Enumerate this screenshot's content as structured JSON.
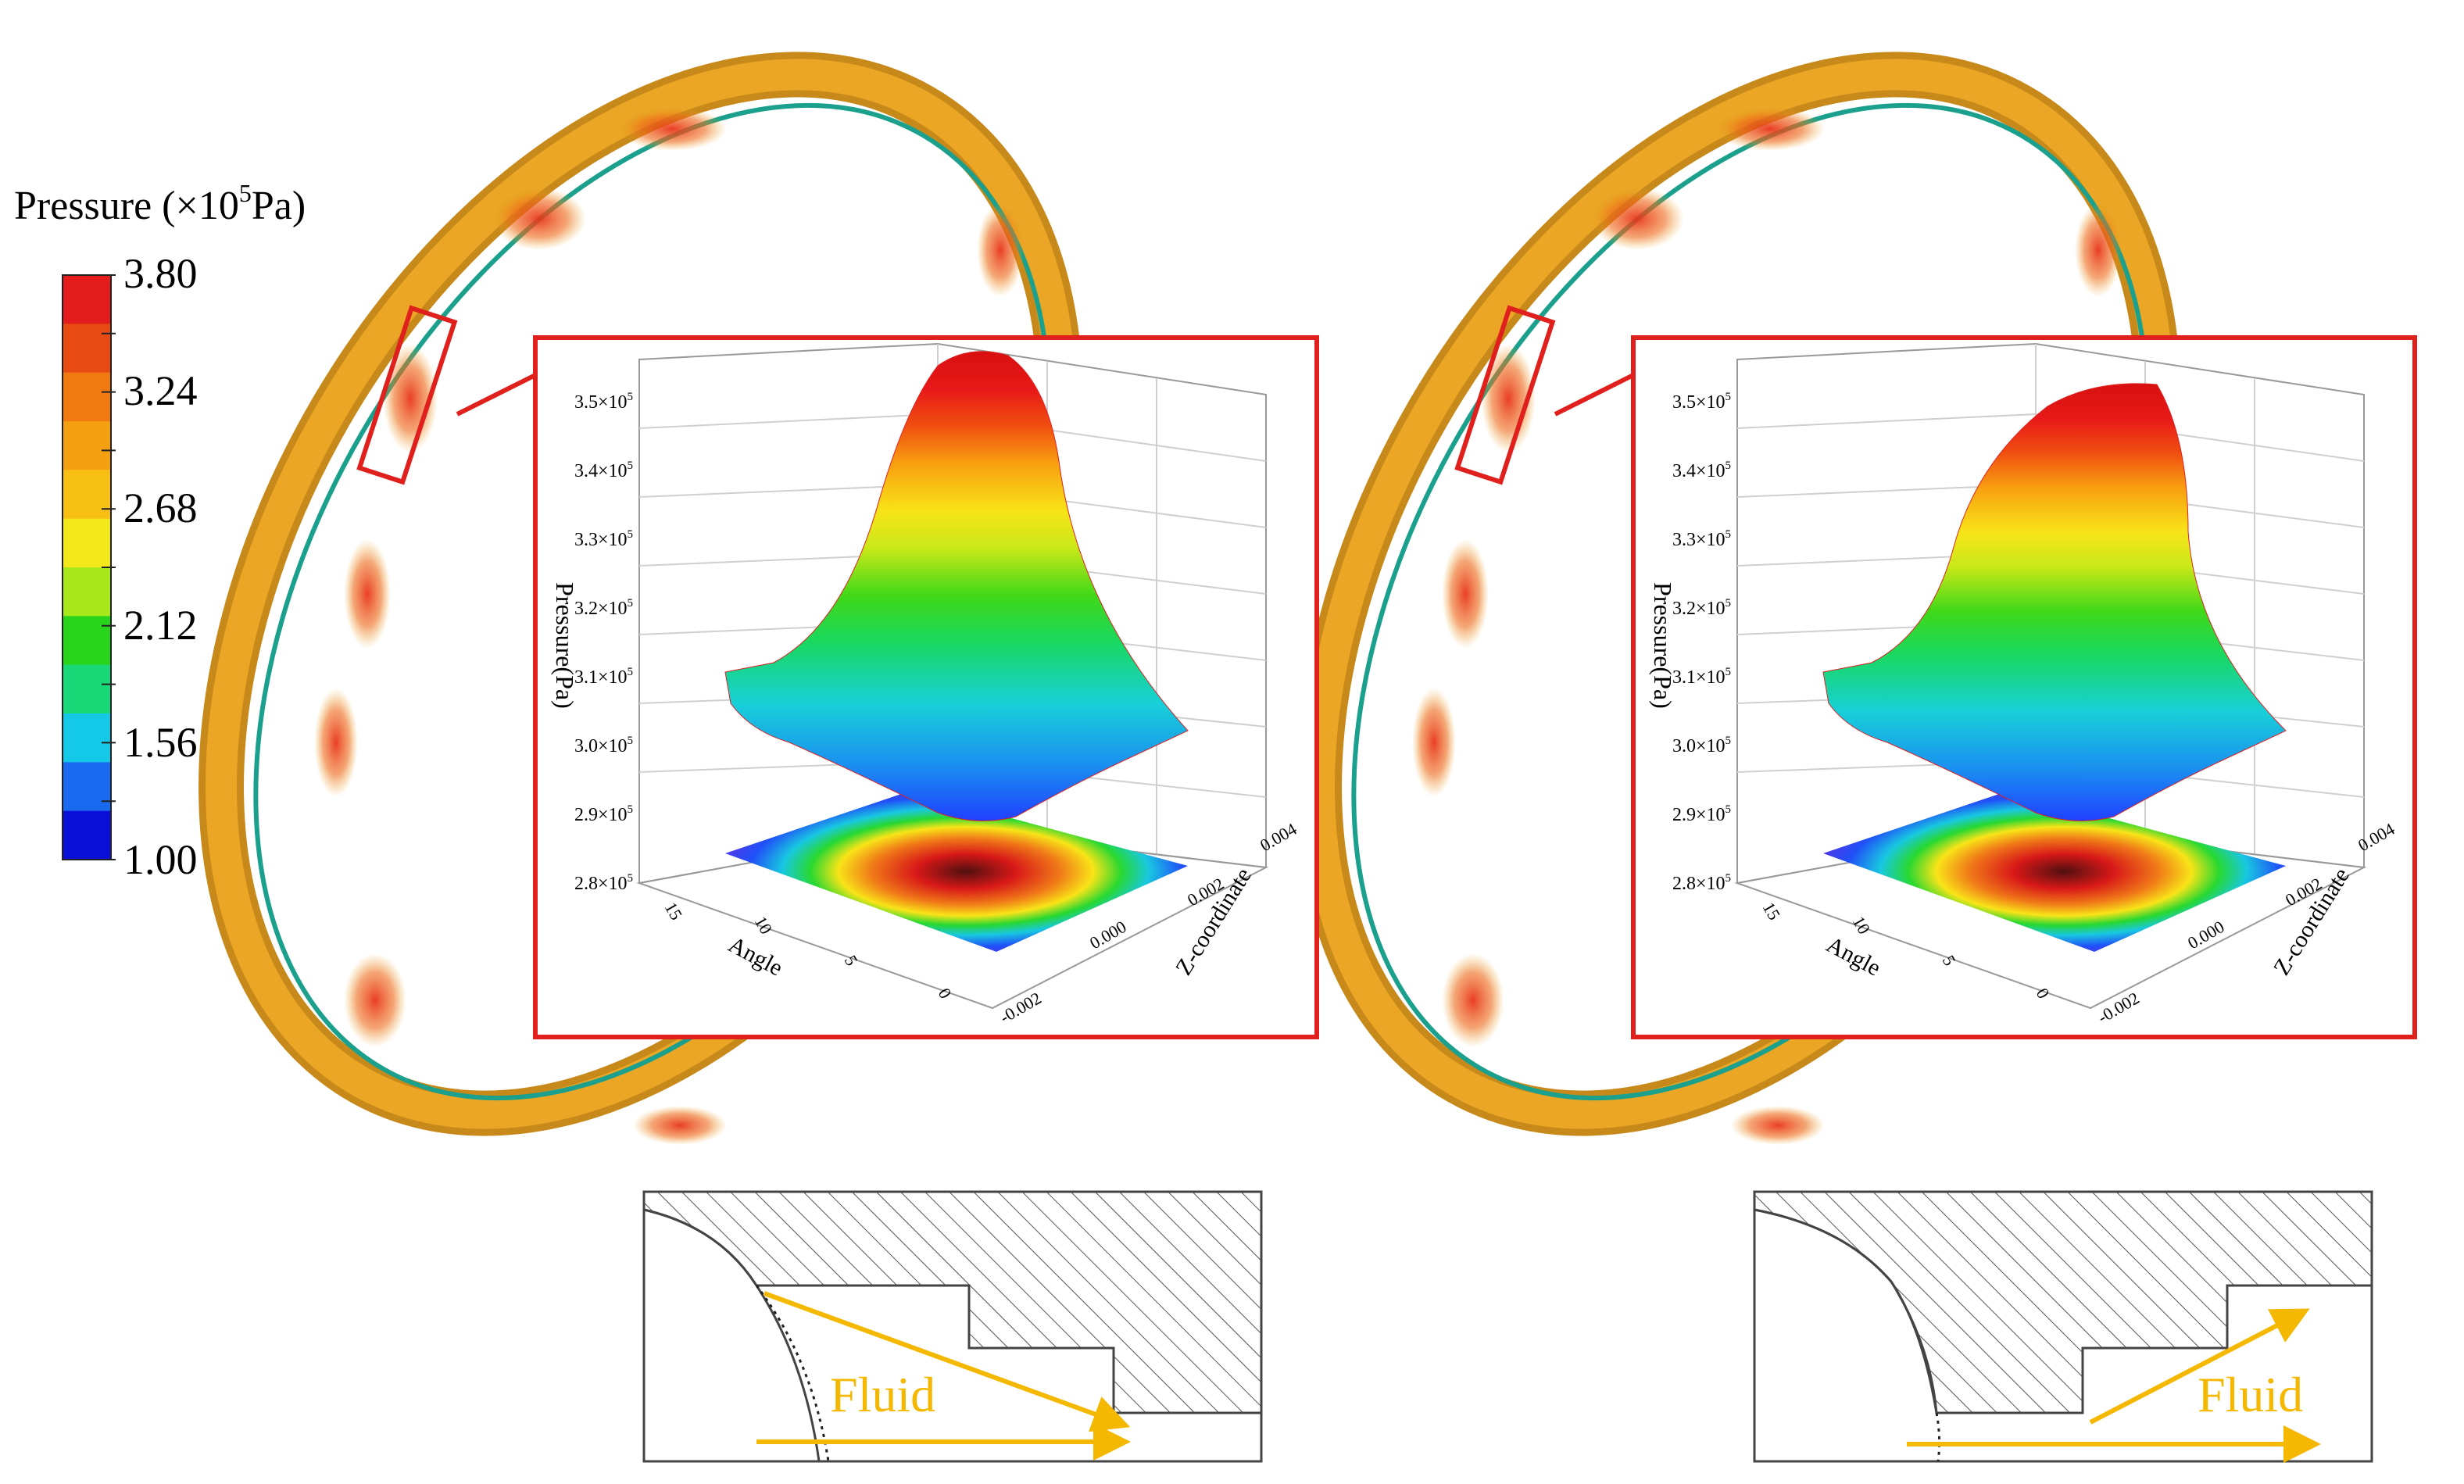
{
  "legend": {
    "title_main": "Pressure (×10",
    "title_sup": "5",
    "title_tail": "Pa)",
    "levels": [
      "3.80",
      "3.24",
      "2.68",
      "2.12",
      "1.56",
      "1.00"
    ],
    "colors": [
      "#0a10d8",
      "#1a6af0",
      "#14c8e8",
      "#18d878",
      "#28d41c",
      "#a8e81a",
      "#f2e81a",
      "#f8c015",
      "#f4a010",
      "#f07a10",
      "#e84a14",
      "#e41c1c"
    ]
  },
  "inset_left": {
    "ylabel": "Pressure(Pa)",
    "yticks": [
      "3.5×10",
      "3.4×10",
      "3.3×10",
      "3.2×10",
      "3.1×10",
      "3.0×10",
      "2.9×10",
      "2.8×10"
    ],
    "ytick_sup": "5",
    "xlabel": "Angle",
    "xticks": [
      "15",
      "10",
      "5",
      "0"
    ],
    "zlabel": "Z-coordinate",
    "zticks": [
      "0.004",
      "0.002",
      "0.000",
      "-0.002"
    ]
  },
  "inset_right": {
    "ylabel": "Pressure(Pa)",
    "yticks": [
      "3.5×10",
      "3.4×10",
      "3.3×10",
      "3.2×10",
      "3.1×10",
      "3.0×10",
      "2.9×10",
      "2.8×10"
    ],
    "ytick_sup": "5",
    "xlabel": "Angle",
    "xticks": [
      "15",
      "10",
      "5",
      "0"
    ],
    "zlabel": "Z-coordinate",
    "zticks": [
      "0.004",
      "0.002",
      "0.000",
      "-0.002"
    ]
  },
  "schematic_left": {
    "label": "Fluid"
  },
  "schematic_right": {
    "label": "Fluid"
  },
  "colors": {
    "frame": "#e0201c",
    "arrow": "#f5b800",
    "ring": "#e9a41e"
  }
}
